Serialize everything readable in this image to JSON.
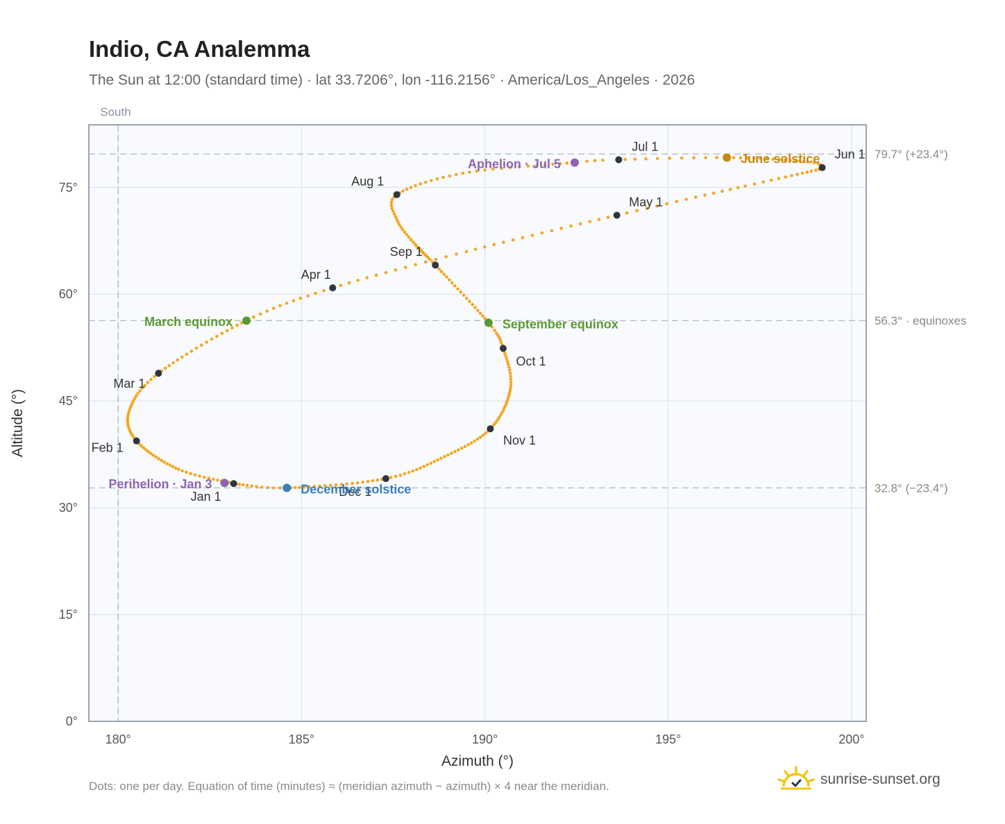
{
  "title": "Indio, CA Analemma",
  "subtitle": "The Sun at 12:00 (standard time) · lat 33.7206°, lon -116.2156° · America/Los_Angeles · 2026",
  "footnote": "Dots: one per day. Equation of time (minutes) ≈ (meridian azimuth − azimuth) × 4 near the meridian.",
  "brand": {
    "text": "sunrise-sunset.org",
    "icon": "sun-logo-icon"
  },
  "colors": {
    "path": "#f5a623",
    "month_marker": "#2f3640",
    "june_solstice": "#c98a0c",
    "december_solstice": "#3a7ec0",
    "equinox": "#5a9a30",
    "apsis": "#8e63b4",
    "plot_bg": "#f8fafd",
    "grid": "#e3e8ee",
    "frame": "#9aa3b0"
  },
  "chart_data": {
    "type": "scatter",
    "x_axis": {
      "label": "Azimuth (°)",
      "min": 179.2,
      "max": 200.4,
      "ticks": [
        "180°",
        "185°",
        "190°",
        "195°",
        "200°"
      ],
      "tick_values": [
        180,
        185,
        190,
        195,
        200
      ]
    },
    "y_axis": {
      "label": "Altitude (°)",
      "min": 0,
      "max": 83.8,
      "ticks": [
        "0°",
        "15°",
        "30°",
        "45°",
        "60°",
        "75°"
      ],
      "tick_values": [
        0,
        15,
        30,
        45,
        60,
        75
      ]
    },
    "grid": true,
    "south_line": {
      "label": "South",
      "azimuth": 180
    },
    "reference_lines": [
      {
        "altitude": 79.7,
        "label": "79.7° (+23.4°)"
      },
      {
        "altitude": 56.3,
        "label": "56.3° · equinoxes"
      },
      {
        "altitude": 32.8,
        "label": "32.8° (−23.4°)"
      }
    ],
    "path_anchors": [
      {
        "day": 1,
        "az": 183.15,
        "alt": 33.4
      },
      {
        "day": 15,
        "az": 181.65,
        "alt": 35.4
      },
      {
        "day": 32,
        "az": 180.5,
        "alt": 39.4
      },
      {
        "day": 46,
        "az": 180.3,
        "alt": 43.6
      },
      {
        "day": 60,
        "az": 181.1,
        "alt": 48.9
      },
      {
        "day": 79,
        "az": 183.5,
        "alt": 56.3
      },
      {
        "day": 91,
        "az": 185.85,
        "alt": 60.9
      },
      {
        "day": 105,
        "az": 189.5,
        "alt": 66.0
      },
      {
        "day": 121,
        "az": 193.6,
        "alt": 71.1
      },
      {
        "day": 135,
        "az": 197.1,
        "alt": 75.2
      },
      {
        "day": 145,
        "az": 198.9,
        "alt": 77.3
      },
      {
        "day": 152,
        "az": 199.2,
        "alt": 77.8
      },
      {
        "day": 158,
        "az": 198.8,
        "alt": 78.6
      },
      {
        "day": 172,
        "az": 196.6,
        "alt": 79.2
      },
      {
        "day": 182,
        "az": 193.6,
        "alt": 78.9
      },
      {
        "day": 186,
        "az": 192.4,
        "alt": 78.5
      },
      {
        "day": 200,
        "az": 189.4,
        "alt": 77.0
      },
      {
        "day": 213,
        "az": 187.6,
        "alt": 74.0
      },
      {
        "day": 222,
        "az": 187.6,
        "alt": 70.5
      },
      {
        "day": 232,
        "az": 188.1,
        "alt": 67.0
      },
      {
        "day": 244,
        "az": 188.65,
        "alt": 64.1
      },
      {
        "day": 265,
        "az": 190.1,
        "alt": 56.0
      },
      {
        "day": 274,
        "az": 190.5,
        "alt": 52.4
      },
      {
        "day": 288,
        "az": 190.7,
        "alt": 46.8
      },
      {
        "day": 305,
        "az": 190.15,
        "alt": 41.1
      },
      {
        "day": 320,
        "az": 188.9,
        "alt": 37.2
      },
      {
        "day": 335,
        "az": 187.3,
        "alt": 34.1
      },
      {
        "day": 355,
        "az": 184.6,
        "alt": 32.8
      },
      {
        "day": 366,
        "az": 183.15,
        "alt": 33.4
      }
    ],
    "month_markers": [
      {
        "label": "Jan 1",
        "az": 183.15,
        "alt": 33.4
      },
      {
        "label": "Feb 1",
        "az": 180.5,
        "alt": 39.4
      },
      {
        "label": "Mar 1",
        "az": 181.1,
        "alt": 48.9
      },
      {
        "label": "Apr 1",
        "az": 185.85,
        "alt": 60.9
      },
      {
        "label": "May 1",
        "az": 193.6,
        "alt": 71.1
      },
      {
        "label": "Jun 1",
        "az": 199.2,
        "alt": 77.8
      },
      {
        "label": "Jul 1",
        "az": 193.65,
        "alt": 78.9
      },
      {
        "label": "Aug 1",
        "az": 187.6,
        "alt": 74.0
      },
      {
        "label": "Sep 1",
        "az": 188.65,
        "alt": 64.1
      },
      {
        "label": "Oct 1",
        "az": 190.5,
        "alt": 52.4
      },
      {
        "label": "Nov 1",
        "az": 190.15,
        "alt": 41.1
      },
      {
        "label": "Dec 1",
        "az": 187.3,
        "alt": 34.1
      }
    ],
    "events": [
      {
        "label": "June solstice",
        "az": 196.6,
        "alt": 79.2,
        "color": "#c98a0c"
      },
      {
        "label": "December solstice",
        "az": 184.6,
        "alt": 32.8,
        "color": "#3a7ec0"
      },
      {
        "label": "March equinox",
        "az": 183.5,
        "alt": 56.3,
        "color": "#5a9a30"
      },
      {
        "label": "September equinox",
        "az": 190.1,
        "alt": 56.0,
        "color": "#5a9a30"
      },
      {
        "label": "Perihelion · Jan 3",
        "az": 182.9,
        "alt": 33.5,
        "color": "#8e63b4"
      },
      {
        "label": "Aphelion · Jul 5",
        "az": 192.45,
        "alt": 78.5,
        "color": "#8e63b4"
      }
    ]
  }
}
